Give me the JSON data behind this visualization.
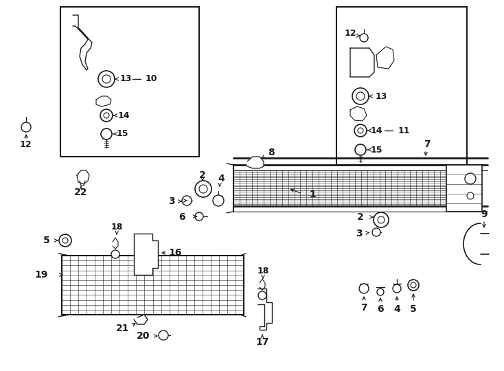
{
  "bg": "#ffffff",
  "lc": "#1a1a1a",
  "fig_w": 7.34,
  "fig_h": 5.4,
  "dpi": 100,
  "xl": 0,
  "xr": 734,
  "yb": 0,
  "yt": 540
}
